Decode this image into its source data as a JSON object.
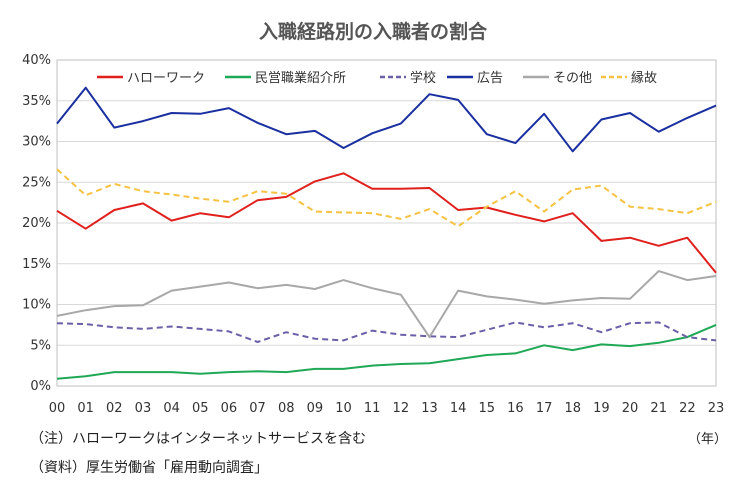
{
  "colors": {
    "hellowork": "#E0201C",
    "private_agency": "#1FA856",
    "school": "#6B5FA8",
    "advertisement": "#1A2FA0",
    "other": "#A8A8A8",
    "connection": "#F5C242"
  },
  "notes": {
    "note1": "（注）ハローワークはインターネットサービスを含む",
    "note2": "（資料）厚生労働省「雇用動向調査」",
    "unit": "（年）"
  },
  "chart_data": {
    "type": "line",
    "title": "入職経路別の入職者の割合",
    "xlabel": "",
    "ylabel": "",
    "ylim": [
      0,
      40
    ],
    "yticks": [
      "0%",
      "5%",
      "10%",
      "15%",
      "20%",
      "25%",
      "30%",
      "35%",
      "40%"
    ],
    "categories": [
      "00",
      "01",
      "02",
      "03",
      "04",
      "05",
      "06",
      "07",
      "08",
      "09",
      "10",
      "11",
      "12",
      "13",
      "14",
      "15",
      "16",
      "17",
      "18",
      "19",
      "20",
      "21",
      "22",
      "23"
    ],
    "grid": "horizontal",
    "legend_position": "top",
    "series": [
      {
        "name": "ハローワーク",
        "color": "#E0201C",
        "dash": "solid",
        "values": [
          21.5,
          19.3,
          21.6,
          22.4,
          20.3,
          21.2,
          20.7,
          22.8,
          23.2,
          25.1,
          26.1,
          24.2,
          24.2,
          24.3,
          21.6,
          21.9,
          21.0,
          20.2,
          21.2,
          17.8,
          18.2,
          17.2,
          18.2,
          13.9
        ]
      },
      {
        "name": "民営職業紹介所",
        "color": "#1FA856",
        "dash": "solid",
        "values": [
          0.9,
          1.2,
          1.7,
          1.7,
          1.7,
          1.5,
          1.7,
          1.8,
          1.7,
          2.1,
          2.1,
          2.5,
          2.7,
          2.8,
          3.3,
          3.8,
          4.0,
          5.0,
          4.4,
          5.1,
          4.9,
          5.3,
          6.0,
          7.5
        ]
      },
      {
        "name": "学校",
        "color": "#6B5FA8",
        "dash": "dashed",
        "values": [
          7.7,
          7.6,
          7.2,
          7.0,
          7.3,
          7.0,
          6.7,
          5.4,
          6.6,
          5.8,
          5.6,
          6.8,
          6.3,
          6.1,
          6.0,
          6.9,
          7.8,
          7.2,
          7.7,
          6.6,
          7.7,
          7.8,
          6.0,
          5.6
        ]
      },
      {
        "name": "広告",
        "color": "#1A2FA0",
        "dash": "solid",
        "values": [
          32.2,
          36.6,
          31.7,
          32.5,
          33.5,
          33.4,
          34.1,
          32.3,
          30.9,
          31.3,
          29.2,
          31.0,
          32.2,
          35.8,
          35.1,
          30.9,
          29.8,
          33.4,
          28.8,
          32.7,
          33.5,
          31.2,
          32.9,
          34.4
        ]
      },
      {
        "name": "その他",
        "color": "#A8A8A8",
        "dash": "solid",
        "values": [
          8.6,
          9.3,
          9.8,
          9.9,
          11.7,
          12.2,
          12.7,
          12.0,
          12.4,
          11.9,
          13.0,
          12.0,
          11.2,
          6.0,
          11.7,
          11.0,
          10.6,
          10.1,
          10.5,
          10.8,
          10.7,
          14.1,
          13.0,
          13.5
        ]
      },
      {
        "name": "縁故",
        "color": "#F5C242",
        "dash": "dashed",
        "values": [
          26.6,
          23.4,
          24.8,
          23.9,
          23.5,
          23.0,
          22.6,
          23.9,
          23.6,
          21.4,
          21.3,
          21.2,
          20.5,
          21.7,
          19.6,
          22.0,
          23.9,
          21.4,
          24.1,
          24.6,
          22.0,
          21.7,
          21.2,
          22.6
        ]
      }
    ]
  }
}
